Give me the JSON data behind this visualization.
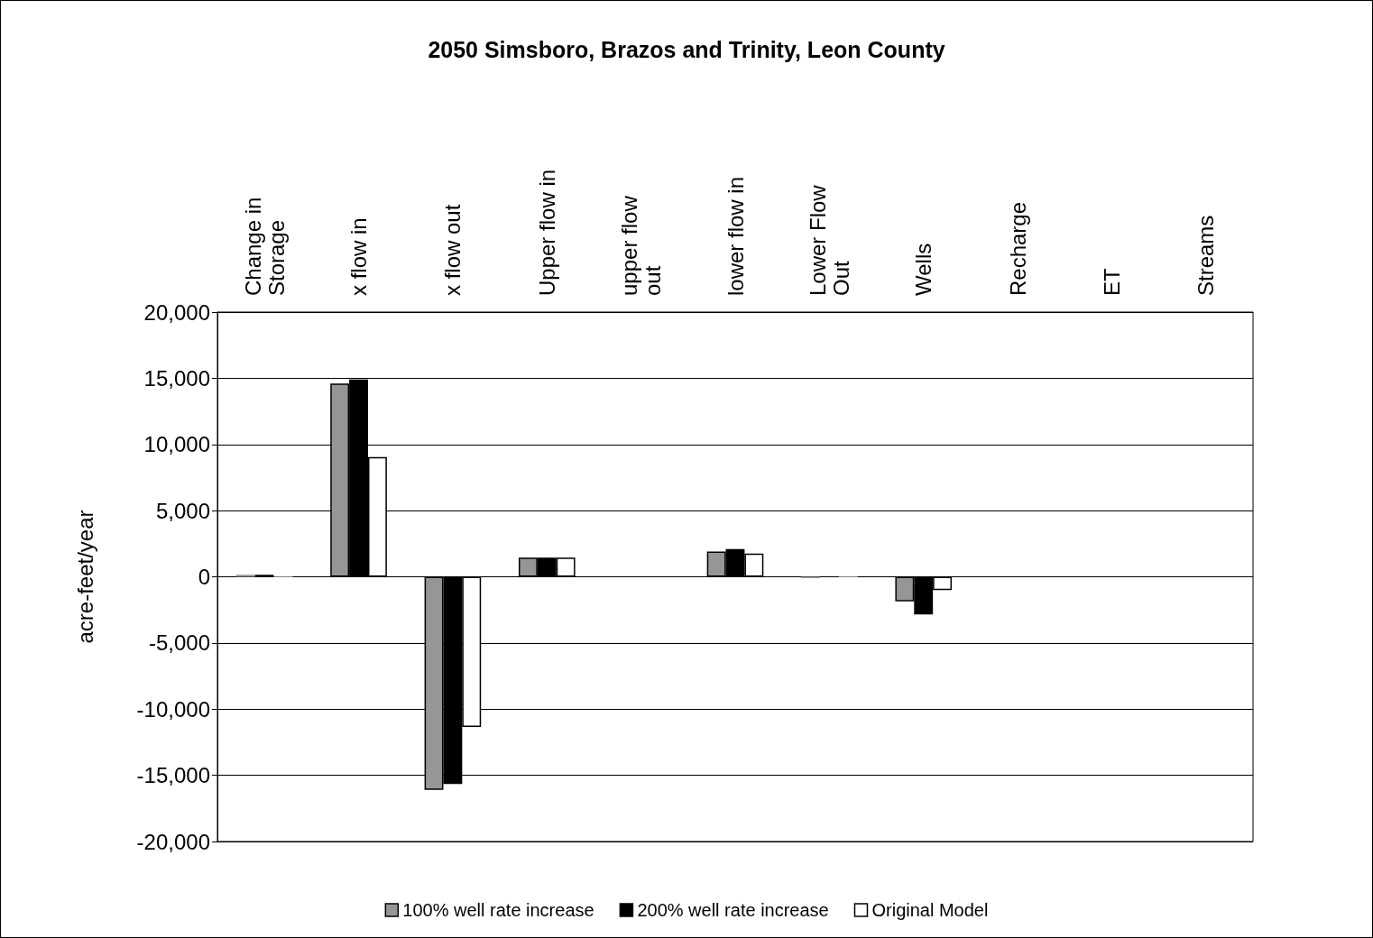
{
  "chart_data": {
    "type": "bar",
    "title": "2050 Simsboro, Brazos and Trinity, Leon County",
    "ylabel": "acre-feet/year",
    "categories": [
      "Change in Storage",
      "x flow in",
      "x flow out",
      "Upper flow in",
      "upper flow out",
      "lower flow in",
      "Lower Flow Out",
      "Wells",
      "Recharge",
      "ET",
      "Streams"
    ],
    "series": [
      {
        "name": "100% well rate increase",
        "color": "#969696",
        "values": [
          150,
          14600,
          -16100,
          1450,
          0,
          1900,
          -100,
          -1850,
          0,
          0,
          0
        ]
      },
      {
        "name": "200% well rate increase",
        "color": "#000000",
        "values": [
          150,
          14900,
          -15650,
          1450,
          0,
          2100,
          0,
          -2850,
          0,
          0,
          0
        ]
      },
      {
        "name": "Original Model",
        "color": "#ffffff",
        "values": [
          150,
          9050,
          -11350,
          1450,
          0,
          1750,
          -100,
          -1000,
          0,
          0,
          0
        ]
      }
    ],
    "ylim": [
      -20000,
      20000
    ],
    "yticks": [
      {
        "value": -20000,
        "label": "-20,000"
      },
      {
        "value": -15000,
        "label": "-15,000"
      },
      {
        "value": -10000,
        "label": "-10,000"
      },
      {
        "value": -5000,
        "label": "-5,000"
      },
      0,
      {
        "value": 5000,
        "label": "5,000"
      },
      {
        "value": 10000,
        "label": "10,000"
      },
      {
        "value": 15000,
        "label": "15,000"
      },
      {
        "value": 20000,
        "label": "20,000"
      }
    ],
    "grid": "y",
    "legend": "bottom"
  }
}
